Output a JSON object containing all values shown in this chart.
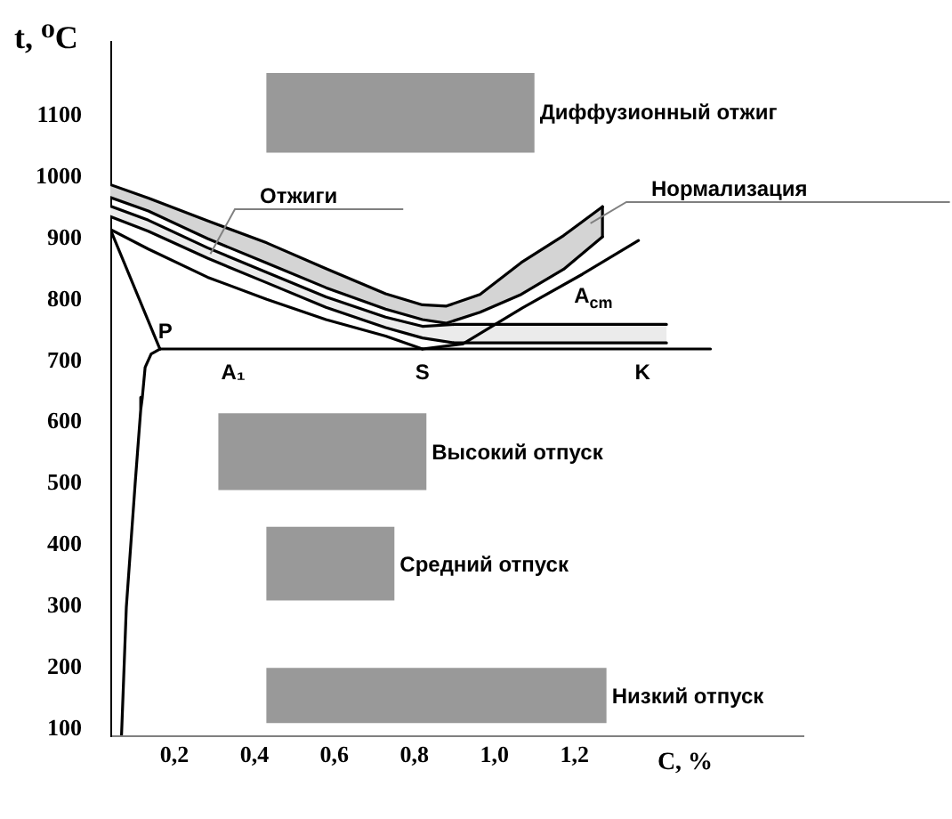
{
  "chart_data": {
    "type": "line",
    "xlabel": "C, %",
    "ylabel": "t, ⁰C",
    "xlim": [
      0.04,
      1.77
    ],
    "ylim": [
      90,
      1220
    ],
    "xticks": [
      {
        "value": 0.2,
        "label": "0,2"
      },
      {
        "value": 0.4,
        "label": "0,4"
      },
      {
        "value": 0.6,
        "label": "0,6"
      },
      {
        "value": 0.8,
        "label": "0,8"
      },
      {
        "value": 1.0,
        "label": "1,0"
      },
      {
        "value": 1.2,
        "label": "1,2"
      }
    ],
    "yticks": [
      100,
      200,
      300,
      400,
      500,
      600,
      700,
      800,
      900,
      1000,
      1100
    ],
    "series": [
      {
        "color": "#d4d4d4",
        "x": [
          0.04,
          0.135,
          0.283,
          0.431,
          0.579,
          0.728,
          0.82,
          0.88,
          0.964,
          1.067,
          1.173,
          1.27
        ],
        "values": [
          null,
          null,
          null,
          null,
          null,
          null,
          null,
          null,
          null,
          null,
          null,
          null
        ],
        "lower": [
          967,
          945,
          900,
          860,
          820,
          785,
          768,
          762,
          780,
          809,
          850,
          903
        ],
        "upper": [
          988,
          966,
          929,
          893,
          851,
          810,
          792,
          790,
          809,
          861,
          905,
          952
        ]
      },
      {
        "color": "#ebebeb",
        "x": [
          0.04,
          0.135,
          0.283,
          0.431,
          0.579,
          0.728,
          0.82,
          0.9,
          1.43
        ],
        "values": [
          null,
          null,
          null,
          null,
          null,
          null,
          null,
          null,
          null
        ],
        "lower": [
          936,
          912,
          868,
          828,
          788,
          755,
          738,
          730,
          730
        ],
        "upper": [
          953,
          930,
          885,
          845,
          805,
          772,
          757,
          760,
          760
        ]
      },
      {
        "name": "Диффузионный отжиг",
        "x": [
          0.43,
          1.1
        ],
        "values": [
          null,
          null
        ],
        "lower": [
          1040,
          1040
        ],
        "upper": [
          1170,
          1170
        ]
      },
      {
        "name": "Высокий отпуск",
        "x": [
          0.31,
          0.83
        ],
        "values": [
          null,
          null
        ],
        "lower": [
          490,
          490
        ],
        "upper": [
          615,
          615
        ]
      },
      {
        "name": "Средний отпуск",
        "x": [
          0.43,
          0.75
        ],
        "values": [
          null,
          null
        ],
        "lower": [
          310,
          310
        ],
        "upper": [
          430,
          430
        ]
      },
      {
        "name": "Низкий отпуск",
        "x": [
          0.43,
          1.28
        ],
        "values": [
          null,
          null
        ],
        "lower": [
          110,
          110
        ],
        "upper": [
          200,
          200
        ]
      },
      {
        "color": "#000000",
        "x": [
          0.04,
          0.135,
          0.283,
          0.431,
          0.579,
          0.728,
          0.82,
          0.88,
          0.964,
          1.067,
          1.173,
          1.27
        ],
        "values": [
          988,
          966,
          929,
          893,
          851,
          810,
          792,
          790,
          809,
          861,
          905,
          952
        ]
      },
      {
        "color": "#000000",
        "x": [
          0.04,
          0.135,
          0.283,
          0.431,
          0.579,
          0.728,
          0.82,
          0.88,
          0.964,
          1.067,
          1.173,
          1.27
        ],
        "values": [
          967,
          945,
          900,
          860,
          820,
          785,
          768,
          762,
          780,
          809,
          850,
          903
        ]
      },
      {
        "color": "#000000",
        "x": [
          1.27,
          1.27
        ],
        "values": [
          903,
          952
        ]
      },
      {
        "color": "#000000",
        "x": [
          0.04,
          0.135,
          0.283,
          0.431,
          0.579,
          0.728,
          0.82,
          0.9,
          1.43
        ],
        "values": [
          953,
          930,
          885,
          845,
          805,
          772,
          757,
          760,
          760
        ]
      },
      {
        "color": "#000000",
        "x": [
          0.04,
          0.135,
          0.283,
          0.431,
          0.579,
          0.728,
          0.82,
          0.9,
          1.43
        ],
        "values": [
          936,
          912,
          868,
          828,
          788,
          755,
          738,
          730,
          730
        ]
      },
      {
        "color": "#000000",
        "x": [
          0.04,
          0.135,
          0.283,
          0.431,
          0.579,
          0.728,
          0.82
        ],
        "values": [
          915,
          883,
          837,
          801,
          768,
          741,
          720
        ]
      },
      {
        "color": "#000000",
        "x": [
          0.04,
          0.164
        ],
        "values": [
          915,
          720
        ]
      },
      {
        "color": "#000000",
        "x": [
          0.164,
          0.142,
          0.127,
          0.12,
          0.116,
          0.102,
          0.08,
          0.068
        ],
        "values": [
          720,
          712,
          690,
          641,
          621,
          500,
          299,
          90
        ]
      },
      {
        "color": "#000000",
        "x": [
          0.164,
          1.54
        ],
        "values": [
          720,
          720
        ]
      },
      {
        "color": "#000000",
        "x": [
          0.82,
          0.92,
          1.07,
          1.22,
          1.36
        ],
        "values": [
          720,
          728,
          787,
          842,
          897
        ]
      }
    ],
    "annotations": [
      {
        "text": "Отжиги",
        "x": 0.29,
        "y": 875
      },
      {
        "text": "Нормализация",
        "x": 1.24,
        "y": 925
      },
      {
        "text": "P",
        "x": 0.164,
        "y": 720
      },
      {
        "text": "A₁",
        "x": 0.347,
        "y": 720
      },
      {
        "text": "S",
        "x": 0.82,
        "y": 720
      },
      {
        "text": "K",
        "x": 1.37,
        "y": 720
      },
      {
        "text": "A$_{cm}$",
        "x": 1.19,
        "y": 838
      }
    ]
  }
}
